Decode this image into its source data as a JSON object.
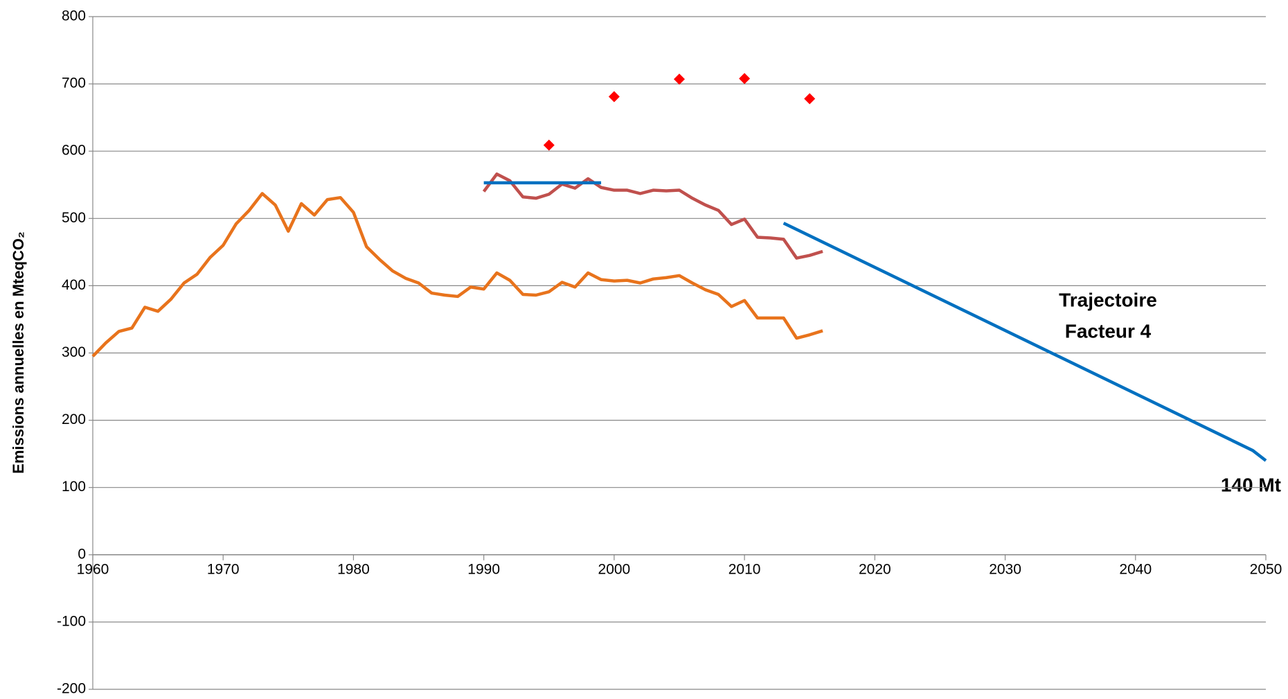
{
  "chart_data": {
    "type": "line",
    "y_label": "Emissions annuelles en MteqCO₂",
    "annotations": [
      "Trajectoire",
      "Facteur 4",
      "140 Mt"
    ],
    "xlim": [
      1960,
      2050
    ],
    "xticks": [
      1960,
      1970,
      1980,
      1990,
      2000,
      2010,
      2020,
      2030,
      2040,
      2050
    ],
    "ylim": [
      -200,
      800
    ],
    "yticks": [
      -200,
      -100,
      0,
      100,
      200,
      300,
      400,
      500,
      600,
      700,
      800
    ],
    "grid": true,
    "series": [
      {
        "type": "line",
        "color": "#e8731c",
        "x": [
          1960,
          1961,
          1962,
          1963,
          1964,
          1965,
          1966,
          1967,
          1968,
          1969,
          1970,
          1971,
          1972,
          1973,
          1974,
          1975,
          1976,
          1977,
          1978,
          1979,
          1980,
          1981,
          1982,
          1983,
          1984,
          1985,
          1986,
          1987,
          1988,
          1989,
          1990,
          1991,
          1992,
          1993,
          1994,
          1995,
          1996,
          1997,
          1998,
          1999,
          2000,
          2001,
          2002,
          2003,
          2004,
          2005,
          2006,
          2007,
          2008,
          2009,
          2010,
          2011,
          2012,
          2013,
          2014,
          2015,
          2016
        ],
        "values": [
          295,
          315,
          332,
          337,
          368,
          362,
          380,
          404,
          417,
          442,
          460,
          492,
          512,
          537,
          520,
          481,
          522,
          505,
          528,
          531,
          509,
          458,
          439,
          422,
          411,
          404,
          389,
          386,
          384,
          398,
          395,
          419,
          408,
          387,
          386,
          391,
          405,
          398,
          419,
          409,
          407,
          408,
          404,
          410,
          412,
          415,
          404,
          394,
          387,
          369,
          378,
          352,
          352,
          352,
          322,
          327,
          333
        ]
      },
      {
        "type": "line",
        "color": "#c0504d",
        "x": [
          1990,
          1991,
          1992,
          1993,
          1994,
          1995,
          1996,
          1997,
          1998,
          1999,
          2000,
          2001,
          2002,
          2003,
          2004,
          2005,
          2006,
          2007,
          2008,
          2009,
          2010,
          2011,
          2012,
          2013,
          2014,
          2015,
          2016
        ],
        "values": [
          540,
          566,
          556,
          532,
          530,
          536,
          551,
          545,
          559,
          546,
          542,
          542,
          537,
          542,
          541,
          542,
          530,
          520,
          512,
          491,
          499,
          472,
          471,
          469,
          441,
          445,
          451
        ]
      },
      {
        "type": "line",
        "color": "#0070c0",
        "x": [
          1990,
          1999
        ],
        "values": [
          553,
          553
        ]
      },
      {
        "type": "line",
        "color": "#0070c0",
        "x": [
          2013,
          2049,
          2050
        ],
        "values": [
          493,
          155,
          140
        ]
      },
      {
        "type": "scatter",
        "color": "#ff0000",
        "x": [
          1995,
          2000,
          2005,
          2010,
          2015
        ],
        "values": [
          609,
          681,
          707,
          708,
          678
        ]
      }
    ]
  }
}
